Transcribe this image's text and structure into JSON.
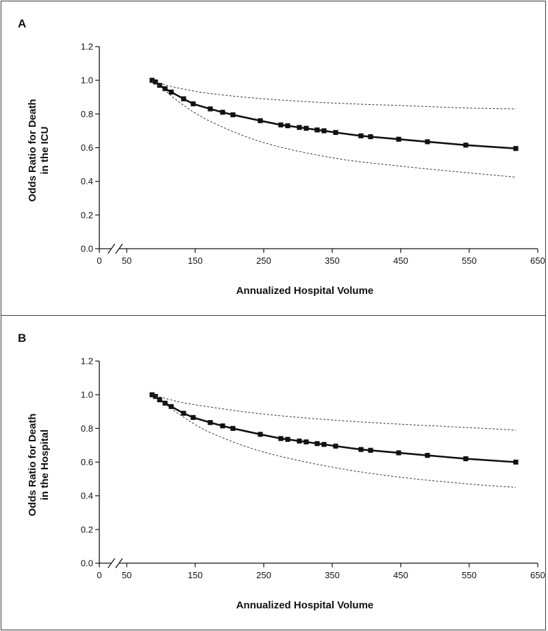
{
  "chart_data": [
    {
      "type": "line",
      "panel_label": "A",
      "xlabel": "Annualized Hospital Volume",
      "ylabel_lines": [
        "Odds Ratio for Death",
        "in the ICU"
      ],
      "xlim": [
        0,
        650
      ],
      "ylim": [
        0.0,
        1.2
      ],
      "x_ticks": [
        "0",
        "50",
        "150",
        "250",
        "350",
        "450",
        "550",
        "650"
      ],
      "y_ticks": [
        "0.0",
        "0.2",
        "0.4",
        "0.6",
        "0.8",
        "1.0",
        "1.2"
      ],
      "axis_break": true,
      "grid": false,
      "series": [
        {
          "style": "solid-with-square-markers",
          "x": [
            87,
            92,
            98,
            106,
            115,
            133,
            147,
            172,
            190,
            205,
            245,
            275,
            285,
            302,
            312,
            328,
            338,
            355,
            392,
            406,
            447,
            489,
            545,
            618
          ],
          "y": [
            1.0,
            0.99,
            0.97,
            0.95,
            0.93,
            0.89,
            0.86,
            0.83,
            0.81,
            0.795,
            0.76,
            0.735,
            0.73,
            0.72,
            0.715,
            0.705,
            0.7,
            0.69,
            0.67,
            0.665,
            0.65,
            0.635,
            0.615,
            0.595
          ]
        },
        {
          "style": "dashed-upper-ci",
          "x": [
            87,
            100,
            130,
            175,
            250,
            350,
            450,
            550,
            618
          ],
          "y": [
            1.0,
            0.98,
            0.95,
            0.92,
            0.89,
            0.865,
            0.85,
            0.835,
            0.83
          ]
        },
        {
          "style": "dashed-lower-ci",
          "x": [
            87,
            100,
            130,
            175,
            250,
            350,
            450,
            550,
            618
          ],
          "y": [
            1.0,
            0.96,
            0.86,
            0.75,
            0.63,
            0.54,
            0.49,
            0.45,
            0.425
          ]
        }
      ]
    },
    {
      "type": "line",
      "panel_label": "B",
      "xlabel": "Annualized Hospital Volume",
      "ylabel_lines": [
        "Odds Ratio for Death",
        "in the Hospital"
      ],
      "xlim": [
        0,
        650
      ],
      "ylim": [
        0.0,
        1.2
      ],
      "x_ticks": [
        "0",
        "50",
        "150",
        "250",
        "350",
        "450",
        "550",
        "650"
      ],
      "y_ticks": [
        "0.0",
        "0.2",
        "0.4",
        "0.6",
        "0.8",
        "1.0",
        "1.2"
      ],
      "axis_break": true,
      "grid": false,
      "series": [
        {
          "style": "solid-with-square-markers",
          "x": [
            87,
            92,
            98,
            106,
            115,
            133,
            147,
            172,
            190,
            205,
            245,
            275,
            285,
            302,
            312,
            328,
            338,
            355,
            392,
            406,
            447,
            489,
            545,
            618
          ],
          "y": [
            1.0,
            0.99,
            0.97,
            0.95,
            0.93,
            0.89,
            0.865,
            0.835,
            0.815,
            0.8,
            0.765,
            0.74,
            0.735,
            0.725,
            0.72,
            0.71,
            0.705,
            0.695,
            0.675,
            0.67,
            0.655,
            0.64,
            0.62,
            0.6
          ]
        },
        {
          "style": "dashed-upper-ci",
          "x": [
            87,
            100,
            130,
            175,
            250,
            350,
            450,
            550,
            618
          ],
          "y": [
            1.0,
            0.985,
            0.955,
            0.925,
            0.885,
            0.85,
            0.825,
            0.805,
            0.79
          ]
        },
        {
          "style": "dashed-lower-ci",
          "x": [
            87,
            100,
            130,
            175,
            250,
            350,
            450,
            550,
            618
          ],
          "y": [
            1.0,
            0.965,
            0.875,
            0.77,
            0.66,
            0.57,
            0.51,
            0.47,
            0.45
          ]
        }
      ]
    }
  ]
}
